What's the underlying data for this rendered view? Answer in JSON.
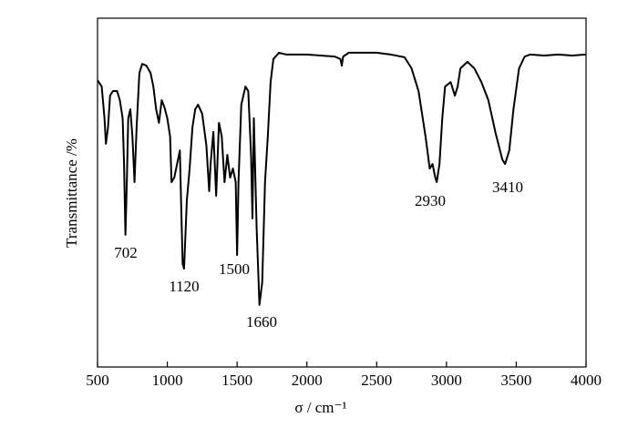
{
  "chart_data": {
    "type": "line",
    "xlabel": "σ / cm⁻¹",
    "ylabel": "Transmittance /%",
    "xlim": [
      500,
      4000
    ],
    "xticks": [
      500,
      1000,
      1500,
      2000,
      2500,
      3000,
      3500,
      4000
    ],
    "ylim": [
      0,
      100
    ],
    "annotations": [
      "702",
      "1120",
      "1500",
      "1660",
      "2930",
      "3410"
    ],
    "series": [
      {
        "color": "#000000",
        "x": [
          500,
          530,
          550,
          560,
          575,
          590,
          610,
          640,
          660,
          680,
          690,
          700,
          710,
          720,
          735,
          750,
          765,
          780,
          800,
          820,
          850,
          880,
          900,
          920,
          940,
          960,
          980,
          1000,
          1020,
          1030,
          1050,
          1070,
          1090,
          1100,
          1110,
          1120,
          1140,
          1160,
          1180,
          1200,
          1220,
          1250,
          1280,
          1300,
          1310,
          1330,
          1350,
          1370,
          1390,
          1410,
          1430,
          1450,
          1470,
          1490,
          1500,
          1510,
          1530,
          1560,
          1580,
          1600,
          1610,
          1620,
          1640,
          1660,
          1680,
          1700,
          1720,
          1740,
          1760,
          1800,
          1850,
          1900,
          2000,
          2100,
          2200,
          2240,
          2250,
          2260,
          2300,
          2400,
          2500,
          2600,
          2700,
          2750,
          2800,
          2850,
          2880,
          2900,
          2920,
          2930,
          2950,
          2970,
          2990,
          3030,
          3060,
          3080,
          3100,
          3150,
          3200,
          3250,
          3300,
          3350,
          3400,
          3420,
          3450,
          3480,
          3520,
          3560,
          3600,
          3700,
          3800,
          3900,
          4000
        ],
        "values": [
          82.2,
          80.4,
          71.3,
          64.0,
          68.7,
          77.8,
          79.1,
          79.1,
          76.5,
          71.3,
          58.2,
          37.9,
          53.0,
          71.3,
          73.9,
          66.1,
          53.0,
          68.7,
          84.3,
          86.9,
          86.4,
          84.3,
          80.4,
          73.9,
          70.0,
          76.5,
          74.4,
          71.3,
          66.1,
          53.0,
          54.3,
          58.2,
          62.1,
          45.2,
          29.5,
          28.2,
          47.8,
          56.9,
          68.7,
          73.9,
          75.2,
          72.6,
          63.4,
          50.4,
          58.2,
          67.4,
          49.1,
          70.0,
          66.1,
          53.0,
          60.8,
          54.3,
          56.9,
          53.0,
          32.1,
          53.0,
          75.2,
          80.4,
          79.1,
          60.8,
          42.6,
          71.3,
          39.9,
          17.8,
          24.3,
          53.0,
          66.1,
          81.7,
          88.3,
          90.1,
          89.6,
          89.6,
          89.6,
          89.3,
          89.0,
          88.3,
          86.4,
          89.0,
          90.1,
          90.1,
          90.1,
          89.6,
          88.8,
          85.6,
          79.1,
          66.1,
          56.9,
          58.2,
          54.3,
          53.0,
          58.2,
          71.3,
          80.4,
          81.7,
          77.8,
          80.4,
          85.6,
          87.5,
          85.6,
          81.7,
          76.5,
          67.4,
          59.5,
          58.2,
          62.1,
          73.9,
          85.6,
          89.0,
          89.6,
          89.3,
          89.6,
          89.3,
          89.6
        ]
      }
    ]
  }
}
